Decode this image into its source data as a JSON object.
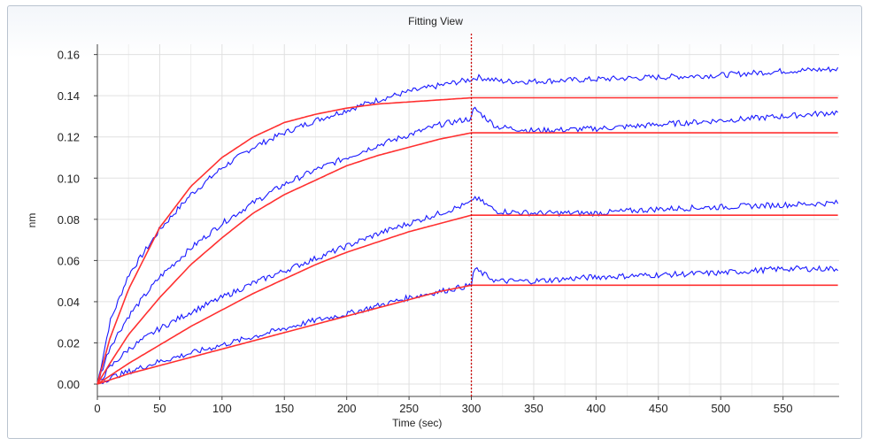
{
  "chart_data": {
    "type": "line",
    "title": "Fitting View",
    "xlabel": "Time (sec)",
    "ylabel": "nm",
    "xlim": [
      0,
      595
    ],
    "ylim": [
      -0.006,
      0.165
    ],
    "x_ticks": [
      0,
      50,
      100,
      150,
      200,
      250,
      300,
      350,
      400,
      450,
      500,
      550
    ],
    "y_ticks": [
      0.0,
      0.02,
      0.04,
      0.06,
      0.08,
      0.1,
      0.12,
      0.14,
      0.16
    ],
    "y_tick_labels": [
      "0.00",
      "0.02",
      "0.04",
      "0.06",
      "0.08",
      "0.10",
      "0.12",
      "0.14",
      "0.16"
    ],
    "grid": true,
    "vertical_marker_x": 300,
    "colors": {
      "measured": "#1a1aff",
      "fit": "#ff3030",
      "marker": "#cc0000",
      "grid": "#e0e0e0"
    },
    "series": [
      {
        "kind": "measured",
        "color": "#1a1aff",
        "x": [
          0,
          10,
          25,
          50,
          75,
          100,
          125,
          150,
          175,
          200,
          225,
          250,
          275,
          300,
          305,
          325,
          350,
          400,
          450,
          500,
          550,
          595
        ],
        "y": [
          0.0,
          0.03,
          0.053,
          0.075,
          0.092,
          0.105,
          0.115,
          0.122,
          0.128,
          0.133,
          0.138,
          0.142,
          0.145,
          0.148,
          0.149,
          0.147,
          0.147,
          0.148,
          0.149,
          0.15,
          0.152,
          0.153
        ]
      },
      {
        "kind": "measured",
        "color": "#1a1aff",
        "x": [
          0,
          10,
          25,
          50,
          75,
          100,
          125,
          150,
          175,
          200,
          225,
          250,
          275,
          300,
          302,
          320,
          350,
          400,
          450,
          500,
          550,
          595
        ],
        "y": [
          0.0,
          0.018,
          0.033,
          0.052,
          0.066,
          0.078,
          0.088,
          0.097,
          0.104,
          0.11,
          0.116,
          0.121,
          0.126,
          0.129,
          0.134,
          0.125,
          0.123,
          0.124,
          0.126,
          0.128,
          0.13,
          0.132
        ]
      },
      {
        "kind": "measured",
        "color": "#1a1aff",
        "x": [
          0,
          10,
          25,
          50,
          75,
          100,
          125,
          150,
          175,
          200,
          225,
          250,
          275,
          300,
          302,
          320,
          350,
          400,
          450,
          500,
          550,
          595
        ],
        "y": [
          0.0,
          0.008,
          0.017,
          0.027,
          0.035,
          0.042,
          0.049,
          0.055,
          0.061,
          0.067,
          0.073,
          0.078,
          0.083,
          0.088,
          0.091,
          0.084,
          0.083,
          0.083,
          0.085,
          0.086,
          0.087,
          0.088
        ]
      },
      {
        "kind": "measured",
        "color": "#1a1aff",
        "x": [
          0,
          10,
          25,
          50,
          75,
          100,
          125,
          150,
          175,
          200,
          225,
          250,
          275,
          300,
          302,
          320,
          350,
          400,
          450,
          500,
          550,
          595
        ],
        "y": [
          0.0,
          0.003,
          0.006,
          0.011,
          0.015,
          0.019,
          0.023,
          0.027,
          0.031,
          0.034,
          0.038,
          0.042,
          0.045,
          0.048,
          0.056,
          0.05,
          0.05,
          0.052,
          0.053,
          0.054,
          0.056,
          0.056
        ]
      },
      {
        "kind": "fit",
        "color": "#ff3030",
        "x": [
          0,
          10,
          25,
          50,
          75,
          100,
          125,
          150,
          175,
          200,
          225,
          250,
          275,
          300,
          350,
          400,
          450,
          500,
          550,
          595
        ],
        "y": [
          0.0,
          0.022,
          0.046,
          0.076,
          0.096,
          0.11,
          0.12,
          0.127,
          0.131,
          0.134,
          0.136,
          0.137,
          0.138,
          0.139,
          0.139,
          0.139,
          0.139,
          0.139,
          0.139,
          0.139
        ]
      },
      {
        "kind": "fit",
        "color": "#ff3030",
        "x": [
          0,
          10,
          25,
          50,
          75,
          100,
          125,
          150,
          175,
          200,
          225,
          250,
          275,
          300,
          350,
          400,
          450,
          500,
          550,
          595
        ],
        "y": [
          0.0,
          0.01,
          0.024,
          0.042,
          0.058,
          0.071,
          0.083,
          0.092,
          0.099,
          0.106,
          0.111,
          0.115,
          0.119,
          0.122,
          0.122,
          0.122,
          0.122,
          0.122,
          0.122,
          0.122
        ]
      },
      {
        "kind": "fit",
        "color": "#ff3030",
        "x": [
          0,
          10,
          25,
          50,
          75,
          100,
          125,
          150,
          175,
          200,
          225,
          250,
          275,
          300,
          350,
          400,
          450,
          500,
          550,
          595
        ],
        "y": [
          0.0,
          0.004,
          0.01,
          0.019,
          0.028,
          0.036,
          0.044,
          0.051,
          0.058,
          0.064,
          0.069,
          0.074,
          0.078,
          0.082,
          0.082,
          0.082,
          0.082,
          0.082,
          0.082,
          0.082
        ]
      },
      {
        "kind": "fit",
        "color": "#ff3030",
        "x": [
          0,
          10,
          25,
          50,
          75,
          100,
          125,
          150,
          175,
          200,
          225,
          250,
          275,
          300,
          350,
          400,
          450,
          500,
          550,
          595
        ],
        "y": [
          0.0,
          0.002,
          0.005,
          0.009,
          0.013,
          0.017,
          0.021,
          0.025,
          0.029,
          0.033,
          0.037,
          0.041,
          0.045,
          0.048,
          0.048,
          0.048,
          0.048,
          0.048,
          0.048,
          0.048
        ]
      }
    ]
  }
}
